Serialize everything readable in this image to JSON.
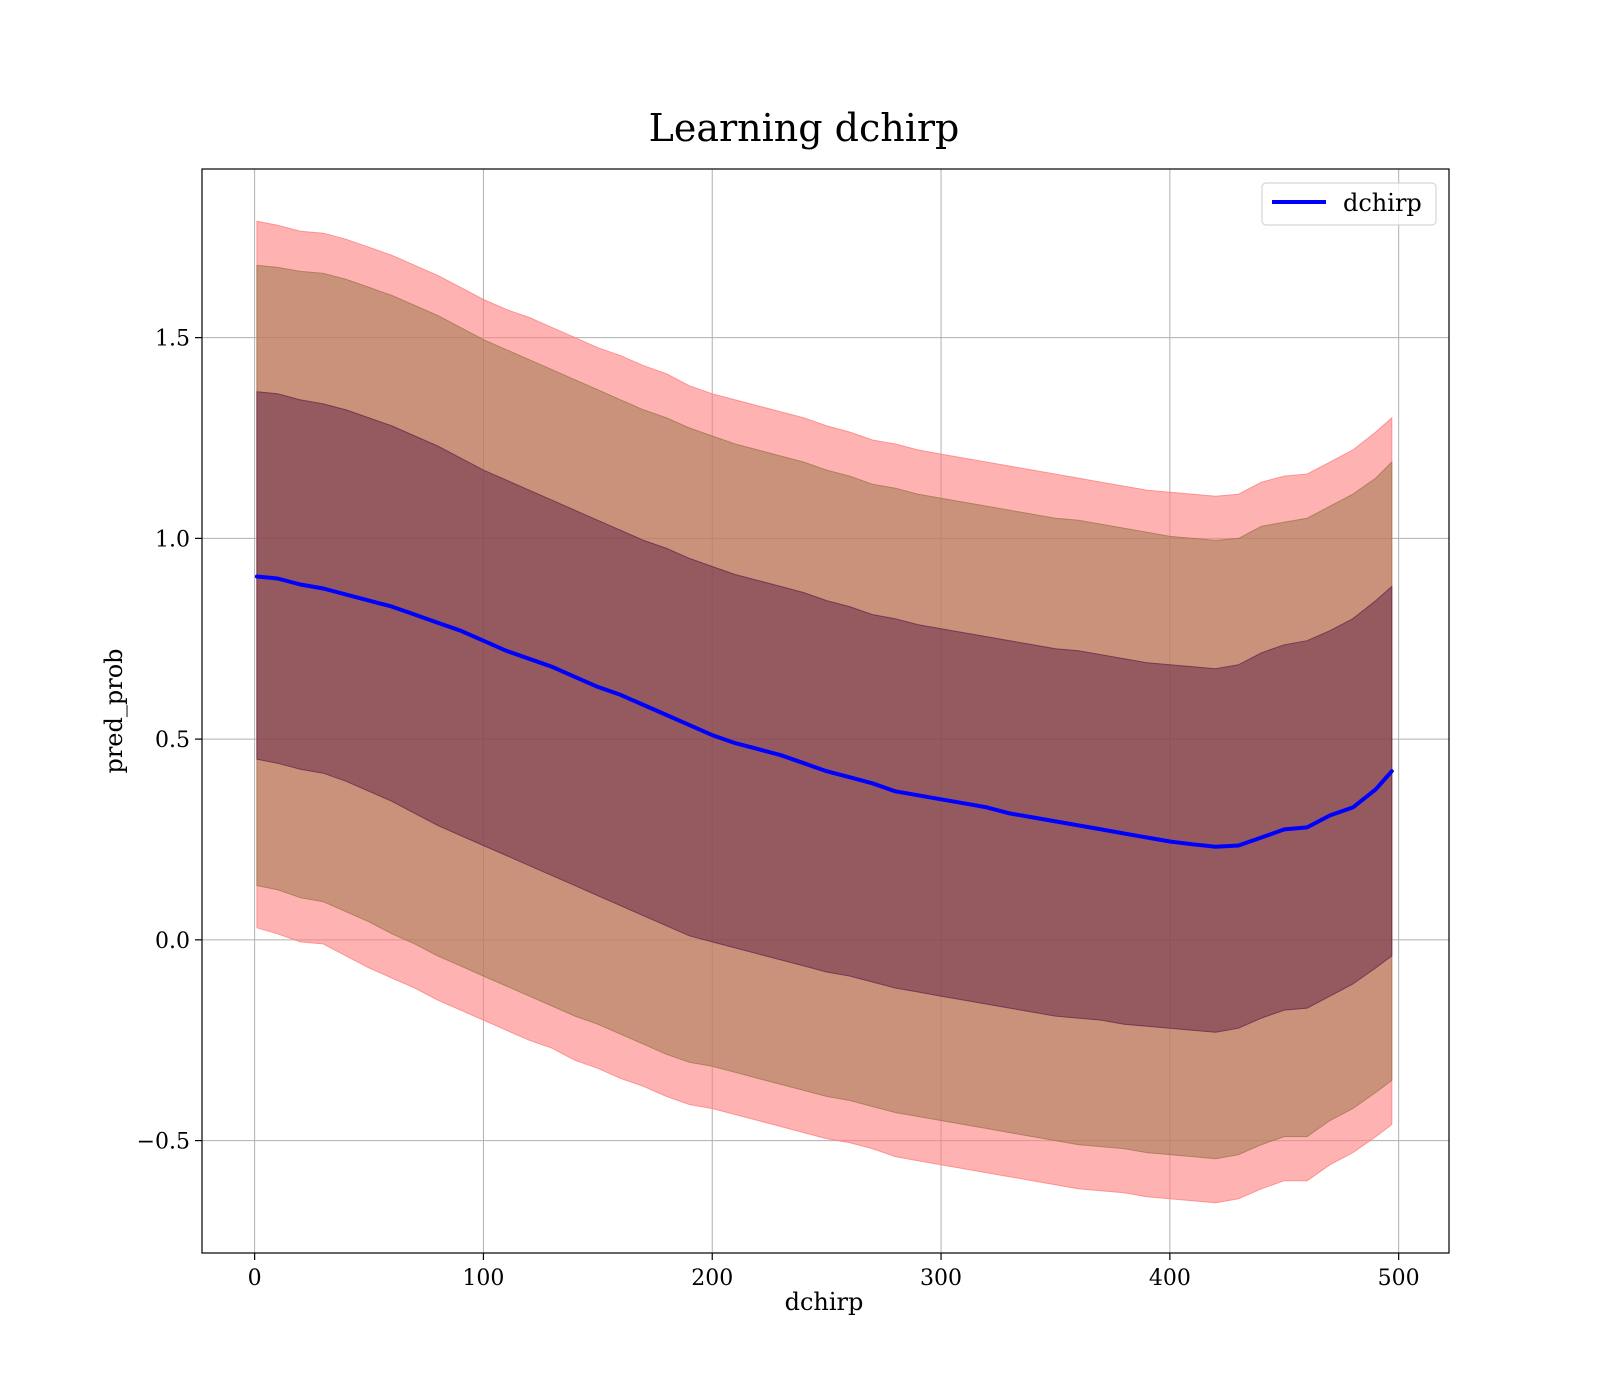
{
  "chart_data": {
    "type": "line",
    "title": "Learning dchirp",
    "xlabel": "dchirp",
    "ylabel": "pred_prob",
    "xlim": [
      -23,
      522
    ],
    "ylim": [
      -0.78,
      1.92
    ],
    "xticks": [
      0,
      100,
      200,
      300,
      400,
      500
    ],
    "xtick_labels": [
      "0",
      "100",
      "200",
      "300",
      "400",
      "500"
    ],
    "yticks": [
      -0.5,
      0.0,
      0.5,
      1.0,
      1.5
    ],
    "ytick_labels": [
      "−0.5",
      "0.0",
      "0.5",
      "1.0",
      "1.5"
    ],
    "grid": true,
    "legend": {
      "position": "top-right",
      "entries": [
        "dchirp"
      ]
    },
    "x": [
      1,
      10,
      20,
      30,
      40,
      50,
      60,
      70,
      80,
      90,
      100,
      110,
      120,
      130,
      140,
      150,
      160,
      170,
      180,
      190,
      200,
      210,
      220,
      230,
      240,
      250,
      260,
      270,
      280,
      290,
      300,
      310,
      320,
      330,
      340,
      350,
      360,
      370,
      380,
      390,
      400,
      410,
      420,
      430,
      440,
      450,
      460,
      470,
      480,
      490,
      497
    ],
    "series": [
      {
        "name": "dchirp",
        "color": "#0000ff",
        "values": [
          0.905,
          0.9,
          0.885,
          0.875,
          0.86,
          0.845,
          0.83,
          0.81,
          0.79,
          0.77,
          0.745,
          0.72,
          0.7,
          0.68,
          0.655,
          0.63,
          0.61,
          0.585,
          0.56,
          0.535,
          0.51,
          0.49,
          0.475,
          0.46,
          0.44,
          0.42,
          0.405,
          0.39,
          0.37,
          0.36,
          0.35,
          0.34,
          0.33,
          0.315,
          0.305,
          0.295,
          0.285,
          0.275,
          0.265,
          0.255,
          0.245,
          0.238,
          0.232,
          0.235,
          0.255,
          0.275,
          0.28,
          0.31,
          0.33,
          0.375,
          0.42
        ]
      }
    ],
    "bands": [
      {
        "color": "#ff7f7f",
        "opacity": 0.6,
        "upper": [
          1.79,
          1.78,
          1.765,
          1.76,
          1.745,
          1.725,
          1.705,
          1.68,
          1.655,
          1.625,
          1.595,
          1.57,
          1.55,
          1.525,
          1.5,
          1.475,
          1.455,
          1.43,
          1.41,
          1.38,
          1.36,
          1.345,
          1.33,
          1.315,
          1.3,
          1.28,
          1.265,
          1.245,
          1.235,
          1.22,
          1.21,
          1.2,
          1.19,
          1.18,
          1.17,
          1.16,
          1.15,
          1.14,
          1.13,
          1.12,
          1.115,
          1.11,
          1.105,
          1.11,
          1.14,
          1.155,
          1.16,
          1.19,
          1.22,
          1.265,
          1.3
        ],
        "lower": [
          0.03,
          0.015,
          -0.005,
          -0.01,
          -0.04,
          -0.07,
          -0.095,
          -0.12,
          -0.15,
          -0.175,
          -0.2,
          -0.225,
          -0.25,
          -0.27,
          -0.3,
          -0.32,
          -0.345,
          -0.365,
          -0.39,
          -0.41,
          -0.42,
          -0.435,
          -0.45,
          -0.465,
          -0.48,
          -0.495,
          -0.505,
          -0.52,
          -0.54,
          -0.55,
          -0.56,
          -0.57,
          -0.58,
          -0.59,
          -0.6,
          -0.61,
          -0.62,
          -0.625,
          -0.63,
          -0.64,
          -0.645,
          -0.65,
          -0.655,
          -0.645,
          -0.62,
          -0.6,
          -0.6,
          -0.56,
          -0.53,
          -0.49,
          -0.46
        ]
      },
      {
        "color": "#a0784f",
        "opacity": 0.55,
        "upper": [
          1.68,
          1.675,
          1.665,
          1.66,
          1.645,
          1.625,
          1.605,
          1.58,
          1.555,
          1.525,
          1.495,
          1.47,
          1.445,
          1.42,
          1.395,
          1.37,
          1.345,
          1.32,
          1.3,
          1.275,
          1.255,
          1.235,
          1.22,
          1.205,
          1.19,
          1.17,
          1.155,
          1.135,
          1.125,
          1.11,
          1.1,
          1.09,
          1.08,
          1.07,
          1.06,
          1.05,
          1.045,
          1.035,
          1.025,
          1.015,
          1.005,
          1.0,
          0.995,
          1.0,
          1.03,
          1.04,
          1.05,
          1.08,
          1.11,
          1.15,
          1.19
        ],
        "lower": [
          0.135,
          0.125,
          0.105,
          0.095,
          0.07,
          0.045,
          0.015,
          -0.01,
          -0.04,
          -0.065,
          -0.09,
          -0.115,
          -0.14,
          -0.165,
          -0.19,
          -0.21,
          -0.235,
          -0.26,
          -0.285,
          -0.305,
          -0.315,
          -0.33,
          -0.345,
          -0.36,
          -0.375,
          -0.39,
          -0.4,
          -0.415,
          -0.43,
          -0.44,
          -0.45,
          -0.46,
          -0.47,
          -0.48,
          -0.49,
          -0.5,
          -0.51,
          -0.515,
          -0.52,
          -0.53,
          -0.535,
          -0.54,
          -0.545,
          -0.535,
          -0.51,
          -0.49,
          -0.49,
          -0.45,
          -0.42,
          -0.38,
          -0.35
        ]
      },
      {
        "color": "#6a2a4a",
        "opacity": 0.55,
        "upper": [
          1.365,
          1.36,
          1.345,
          1.335,
          1.32,
          1.3,
          1.28,
          1.255,
          1.23,
          1.2,
          1.17,
          1.145,
          1.12,
          1.095,
          1.07,
          1.045,
          1.02,
          0.995,
          0.975,
          0.95,
          0.93,
          0.91,
          0.895,
          0.88,
          0.865,
          0.845,
          0.83,
          0.81,
          0.8,
          0.785,
          0.775,
          0.765,
          0.755,
          0.745,
          0.735,
          0.725,
          0.72,
          0.71,
          0.7,
          0.69,
          0.685,
          0.68,
          0.675,
          0.685,
          0.715,
          0.735,
          0.745,
          0.77,
          0.8,
          0.845,
          0.88
        ],
        "lower": [
          0.45,
          0.44,
          0.425,
          0.415,
          0.395,
          0.37,
          0.345,
          0.315,
          0.285,
          0.26,
          0.235,
          0.21,
          0.185,
          0.16,
          0.135,
          0.11,
          0.085,
          0.06,
          0.035,
          0.01,
          -0.005,
          -0.02,
          -0.035,
          -0.05,
          -0.065,
          -0.08,
          -0.09,
          -0.105,
          -0.12,
          -0.13,
          -0.14,
          -0.15,
          -0.16,
          -0.17,
          -0.18,
          -0.19,
          -0.195,
          -0.2,
          -0.21,
          -0.215,
          -0.22,
          -0.225,
          -0.23,
          -0.22,
          -0.195,
          -0.175,
          -0.17,
          -0.14,
          -0.11,
          -0.07,
          -0.04
        ]
      }
    ]
  }
}
